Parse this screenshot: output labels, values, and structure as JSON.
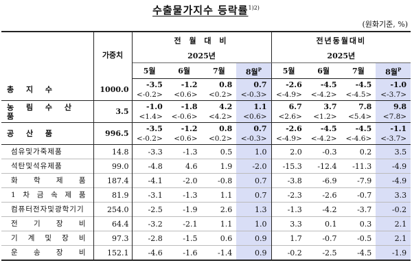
{
  "title": "수출물가지수 등락률",
  "title_sup": "1)2)",
  "unit": "(원화기준, %)",
  "header": {
    "weight_label": "가중치",
    "mom_label": "전 월 대 비",
    "yoy_label": "전년동월대비",
    "year_mom": "2025년",
    "year_yoy": "2025년",
    "months": [
      "5월",
      "6월",
      "7월",
      "8월"
    ],
    "prelim_mark": "P"
  },
  "major_rows": [
    {
      "name": "총 지 수",
      "weight": "1000.0",
      "mom": [
        "-3.5",
        "-1.2",
        "0.8",
        "0.7"
      ],
      "mom_sub": [
        "<-0.2>",
        "<0.6>",
        "<0.2>",
        "<-0.3>"
      ],
      "yoy": [
        "-2.6",
        "-4.5",
        "-4.5",
        "-1.0"
      ],
      "yoy_sub": [
        "<-4.9>",
        "<-4.2>",
        "<-4.5>",
        "<-3.7>"
      ]
    },
    {
      "name": "농 림 수 산 품",
      "weight": "3.5",
      "mom": [
        "-1.0",
        "-1.8",
        "4.2",
        "1.1"
      ],
      "mom_sub": [
        "<1.4>",
        "<-0.6>",
        "<4.2>",
        "<0.6>"
      ],
      "yoy": [
        "6.7",
        "3.7",
        "7.8",
        "9.8"
      ],
      "yoy_sub": [
        "<2.6>",
        "<1.2>",
        "<5.4>",
        "<7.8>"
      ]
    },
    {
      "name": "공 산 품",
      "weight": "996.5",
      "mom": [
        "-3.5",
        "-1.2",
        "0.8",
        "0.7"
      ],
      "mom_sub": [
        "<-0.2>",
        "<0.6>",
        "<0.2>",
        "<-0.3>"
      ],
      "yoy": [
        "-2.6",
        "-4.5",
        "-4.5",
        "-1.1"
      ],
      "yoy_sub": [
        "<-4.9>",
        "<-4.2>",
        "<-4.6>",
        "<-3.7>"
      ]
    }
  ],
  "minor_rows": [
    {
      "name": "섬유및가죽제품",
      "weight": "14.8",
      "mom": [
        "-3.3",
        "-1.3",
        "0.5",
        "1.0"
      ],
      "yoy": [
        "2.0",
        "-0.3",
        "0.2",
        "3.5"
      ]
    },
    {
      "name": "석탄및석유제품",
      "weight": "99.0",
      "mom": [
        "-4.8",
        "4.6",
        "1.9",
        "-2.0"
      ],
      "yoy": [
        "-15.3",
        "-12.4",
        "-11.3",
        "-4.9"
      ]
    },
    {
      "name": "화 학 제 품",
      "weight": "187.4",
      "mom": [
        "-4.1",
        "-2.0",
        "-0.8",
        "0.7"
      ],
      "yoy": [
        "-3.8",
        "-6.9",
        "-7.9",
        "-4.9"
      ]
    },
    {
      "name": "1 차 금 속 제 품",
      "weight": "81.9",
      "mom": [
        "-3.1",
        "-1.3",
        "1.1",
        "0.7"
      ],
      "yoy": [
        "-2.3",
        "-2.6",
        "-0.7",
        "3.3"
      ]
    },
    {
      "name": "컴퓨터전자및광학기기",
      "weight": "254.0",
      "mom": [
        "-2.5",
        "-1.9",
        "2.6",
        "1.3"
      ],
      "yoy": [
        "-1.3",
        "-4.2",
        "-3.7",
        "-0.2"
      ]
    },
    {
      "name": "전 기 장 비",
      "weight": "64.4",
      "mom": [
        "-3.2",
        "-2.1",
        "1.1",
        "1.0"
      ],
      "yoy": [
        "3.3",
        "0.1",
        "0.3",
        "2.1"
      ]
    },
    {
      "name": "기 계 및 장 비",
      "weight": "97.3",
      "mom": [
        "-2.8",
        "-1.5",
        "0.6",
        "0.9"
      ],
      "yoy": [
        "1.7",
        "-0.7",
        "-0.5",
        "2.1"
      ]
    },
    {
      "name": "운 송 장 비",
      "weight": "152.1",
      "mom": [
        "-4.6",
        "-1.6",
        "-1.4",
        "0.9"
      ],
      "yoy": [
        "-0.2",
        "-2.5",
        "-4.5",
        "-1.9"
      ]
    }
  ],
  "colors": {
    "highlight": "#d9def6",
    "rule": "#222222"
  }
}
